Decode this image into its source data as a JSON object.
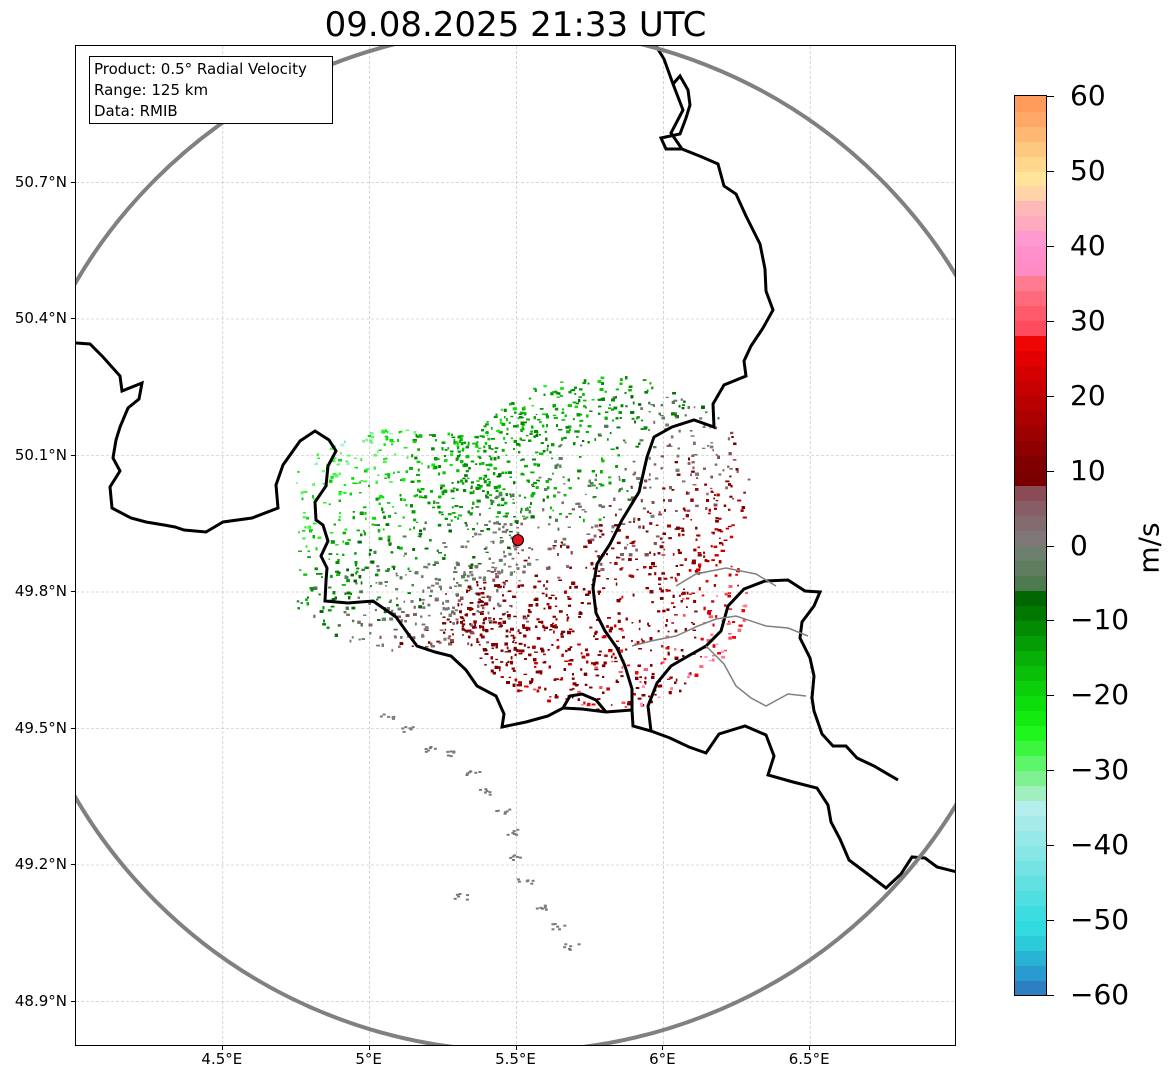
{
  "title": "09.08.2025 21:33 UTC",
  "info_box": {
    "product": "Product: 0.5° Radial Velocity",
    "range": "Range: 125 km",
    "data": "Data: RMIB"
  },
  "map": {
    "lon_range": [
      4.0,
      7.0
    ],
    "lat_range": [
      48.8,
      51.0
    ],
    "lon_ticks": [
      {
        "value": 4.5,
        "label": "4.5°E"
      },
      {
        "value": 5.0,
        "label": "5°E"
      },
      {
        "value": 5.5,
        "label": "5.5°E"
      },
      {
        "value": 6.0,
        "label": "6°E"
      },
      {
        "value": 6.5,
        "label": "6.5°E"
      }
    ],
    "lat_ticks": [
      {
        "value": 50.7,
        "label": "50.7°N"
      },
      {
        "value": 50.4,
        "label": "50.4°N"
      },
      {
        "value": 50.1,
        "label": "50.1°N"
      },
      {
        "value": 49.8,
        "label": "49.8°N"
      },
      {
        "value": 49.5,
        "label": "49.5°N"
      },
      {
        "value": 49.2,
        "label": "49.2°N"
      },
      {
        "value": 48.9,
        "label": "48.9°N"
      }
    ],
    "radar_site": {
      "lon": 5.505,
      "lat": 49.914,
      "marker_color": "#e3121b"
    },
    "range_ring_km": 125,
    "ring_color": "#808080",
    "border_color": "#000000",
    "subborder_color": "#808080"
  },
  "colorbar": {
    "unit": "m/s",
    "min": -60,
    "max": 60,
    "ticks": [
      {
        "value": 60,
        "label": "60"
      },
      {
        "value": 50,
        "label": "50"
      },
      {
        "value": 40,
        "label": "40"
      },
      {
        "value": 30,
        "label": "30"
      },
      {
        "value": 20,
        "label": "20"
      },
      {
        "value": 10,
        "label": "10"
      },
      {
        "value": 0,
        "label": "0"
      },
      {
        "value": -10,
        "label": "−10"
      },
      {
        "value": -20,
        "label": "−20"
      },
      {
        "value": -30,
        "label": "−30"
      },
      {
        "value": -40,
        "label": "−40"
      },
      {
        "value": -50,
        "label": "−50"
      },
      {
        "value": -60,
        "label": "−60"
      }
    ],
    "stops": [
      {
        "from": -60,
        "to": -58,
        "color": "#2d7fc4"
      },
      {
        "from": -58,
        "to": -56,
        "color": "#2a9bcf"
      },
      {
        "from": -56,
        "to": -54,
        "color": "#28b2d4"
      },
      {
        "from": -54,
        "to": -52,
        "color": "#2bcbd9"
      },
      {
        "from": -52,
        "to": -50,
        "color": "#30dade"
      },
      {
        "from": -50,
        "to": -48,
        "color": "#3ddce0"
      },
      {
        "from": -48,
        "to": -46,
        "color": "#4fdfe0"
      },
      {
        "from": -46,
        "to": -44,
        "color": "#60e0e0"
      },
      {
        "from": -44,
        "to": -42,
        "color": "#74e3e3"
      },
      {
        "from": -42,
        "to": -40,
        "color": "#87e6e6"
      },
      {
        "from": -40,
        "to": -38,
        "color": "#97e8e8"
      },
      {
        "from": -38,
        "to": -36,
        "color": "#a6eaea"
      },
      {
        "from": -36,
        "to": -34,
        "color": "#b6eeee"
      },
      {
        "from": -34,
        "to": -32,
        "color": "#9fefbf"
      },
      {
        "from": -32,
        "to": -30,
        "color": "#7ef08f"
      },
      {
        "from": -30,
        "to": -28,
        "color": "#5df569"
      },
      {
        "from": -28,
        "to": -26,
        "color": "#3cf53e"
      },
      {
        "from": -26,
        "to": -24,
        "color": "#1ff61c"
      },
      {
        "from": -24,
        "to": -22,
        "color": "#12ea10"
      },
      {
        "from": -22,
        "to": -20,
        "color": "#0edd0d"
      },
      {
        "from": -20,
        "to": -18,
        "color": "#0bcf0a"
      },
      {
        "from": -18,
        "to": -16,
        "color": "#09bf08"
      },
      {
        "from": -16,
        "to": -14,
        "color": "#07af07"
      },
      {
        "from": -14,
        "to": -12,
        "color": "#059d05"
      },
      {
        "from": -12,
        "to": -10,
        "color": "#038b03"
      },
      {
        "from": -10,
        "to": -8,
        "color": "#017901"
      },
      {
        "from": -8,
        "to": -6,
        "color": "#006600"
      },
      {
        "from": -6,
        "to": -4,
        "color": "#4f7a4f"
      },
      {
        "from": -4,
        "to": -2,
        "color": "#5f7d5f"
      },
      {
        "from": -2,
        "to": 0,
        "color": "#6d7f6d"
      },
      {
        "from": 0,
        "to": 2,
        "color": "#807878"
      },
      {
        "from": 2,
        "to": 4,
        "color": "#836c70"
      },
      {
        "from": 4,
        "to": 6,
        "color": "#875e66"
      },
      {
        "from": 6,
        "to": 8,
        "color": "#8a4b55"
      },
      {
        "from": 8,
        "to": 10,
        "color": "#7a0000"
      },
      {
        "from": 10,
        "to": 12,
        "color": "#800000"
      },
      {
        "from": 12,
        "to": 14,
        "color": "#8e0000"
      },
      {
        "from": 14,
        "to": 16,
        "color": "#9c0000"
      },
      {
        "from": 16,
        "to": 18,
        "color": "#aa0000"
      },
      {
        "from": 18,
        "to": 20,
        "color": "#b80000"
      },
      {
        "from": 20,
        "to": 22,
        "color": "#c60000"
      },
      {
        "from": 22,
        "to": 24,
        "color": "#d40000"
      },
      {
        "from": 24,
        "to": 26,
        "color": "#e20000"
      },
      {
        "from": 26,
        "to": 28,
        "color": "#f00505"
      },
      {
        "from": 28,
        "to": 30,
        "color": "#ff4b5e"
      },
      {
        "from": 30,
        "to": 32,
        "color": "#ff5a6b"
      },
      {
        "from": 32,
        "to": 34,
        "color": "#ff6a7c"
      },
      {
        "from": 34,
        "to": 36,
        "color": "#ff7b90"
      },
      {
        "from": 36,
        "to": 38,
        "color": "#ff8cc4"
      },
      {
        "from": 38,
        "to": 40,
        "color": "#ff90cc"
      },
      {
        "from": 40,
        "to": 42,
        "color": "#ff9ad0"
      },
      {
        "from": 42,
        "to": 44,
        "color": "#ffaac0"
      },
      {
        "from": 44,
        "to": 46,
        "color": "#ffb8b8"
      },
      {
        "from": 46,
        "to": 48,
        "color": "#ffd4a8"
      },
      {
        "from": 48,
        "to": 50,
        "color": "#ffe49a"
      },
      {
        "from": 50,
        "to": 52,
        "color": "#ffd88e"
      },
      {
        "from": 52,
        "to": 54,
        "color": "#ffc880"
      },
      {
        "from": 54,
        "to": 56,
        "color": "#ffb872"
      },
      {
        "from": 56,
        "to": 58,
        "color": "#ffa866"
      },
      {
        "from": 58,
        "to": 60,
        "color": "#ff9a5a"
      }
    ]
  }
}
